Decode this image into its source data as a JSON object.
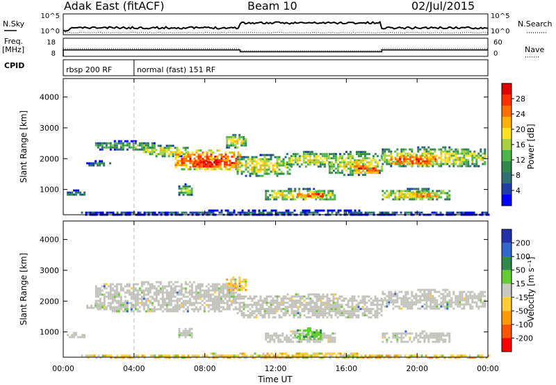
{
  "header": {
    "station": "Adak East (fitACF)",
    "beam": "Beam 10",
    "date": "02/Jul/2015"
  },
  "summary_panel": {
    "left_labels": {
      "nsky": "N.Sky",
      "freq_line1": "Freq.",
      "freq_line2": "[MHz]",
      "cpid": "CPID"
    },
    "right_labels": {
      "nsearch": "N.Search",
      "nave": "Nave"
    },
    "nsky_ticks": [
      "10^5",
      "10^0"
    ],
    "nsearch_ticks": [
      "10^5",
      "10^0"
    ],
    "freq_ticks": [
      "18",
      "8"
    ],
    "nave_ticks": [
      "60",
      "0"
    ],
    "freq_steps": [
      {
        "start_h": 0.0,
        "end_h": 10.0,
        "mhz": 11.5
      },
      {
        "start_h": 10.0,
        "end_h": 18.0,
        "mhz": 10.5
      },
      {
        "start_h": 18.0,
        "end_h": 24.0,
        "mhz": 11.5
      }
    ],
    "cpid_segments": [
      {
        "start_h": 0.0,
        "label": "rbsp 200 RF"
      },
      {
        "start_h": 4.0,
        "label": "normal (fast) 151 RF"
      }
    ]
  },
  "chart_data": [
    {
      "type": "heatmap",
      "name": "Power",
      "ylabel": "Slant Range [km]",
      "xlabel": "",
      "x_range_hours": [
        0,
        24
      ],
      "y_range_km": [
        180,
        4600
      ],
      "y_ticks": [
        "1000",
        "2000",
        "3000",
        "4000"
      ],
      "colorbar_label": "Power [dB]",
      "colorbar_ticks": [
        "4",
        "8",
        "12",
        "16",
        "20",
        "24",
        "28"
      ],
      "colorbar_colors": [
        "#0000ff",
        "#1e3fa6",
        "#2e6f6f",
        "#2f8a4a",
        "#4bb54b",
        "#a8d040",
        "#ffe020",
        "#ffb000",
        "#ff7000",
        "#ff3000",
        "#e00000"
      ],
      "echo_bands": [
        {
          "t0": 0.2,
          "t1": 1.2,
          "r0": 800,
          "r1": 1000,
          "level": 3
        },
        {
          "t0": 1.3,
          "t1": 2.6,
          "r0": 1750,
          "r1": 1950,
          "level": 3
        },
        {
          "t0": 1.8,
          "t1": 5.2,
          "r0": 2300,
          "r1": 2600,
          "level": 4
        },
        {
          "t0": 4.5,
          "t1": 7.0,
          "r0": 2100,
          "r1": 2450,
          "level": 6
        },
        {
          "t0": 6.3,
          "t1": 10.0,
          "r0": 1650,
          "r1": 2300,
          "level": 9
        },
        {
          "t0": 7.3,
          "t1": 9.3,
          "r0": 1700,
          "r1": 2050,
          "level": 10
        },
        {
          "t0": 9.2,
          "t1": 10.3,
          "r0": 2350,
          "r1": 2800,
          "level": 6
        },
        {
          "t0": 9.8,
          "t1": 12.8,
          "r0": 1450,
          "r1": 2150,
          "level": 6
        },
        {
          "t0": 12.6,
          "t1": 15.0,
          "r0": 1750,
          "r1": 2250,
          "level": 6
        },
        {
          "t0": 11.4,
          "t1": 15.4,
          "r0": 650,
          "r1": 1050,
          "level": 6
        },
        {
          "t0": 13.2,
          "t1": 14.8,
          "r0": 750,
          "r1": 950,
          "level": 9
        },
        {
          "t0": 15.0,
          "t1": 18.0,
          "r0": 1500,
          "r1": 2250,
          "level": 6
        },
        {
          "t0": 16.3,
          "t1": 17.8,
          "r0": 1550,
          "r1": 1850,
          "level": 9
        },
        {
          "t0": 18.0,
          "t1": 23.8,
          "r0": 1750,
          "r1": 2400,
          "level": 6
        },
        {
          "t0": 18.5,
          "t1": 21.0,
          "r0": 1800,
          "r1": 2150,
          "level": 9
        },
        {
          "t0": 18.0,
          "t1": 21.8,
          "r0": 650,
          "r1": 1050,
          "level": 6
        },
        {
          "t0": 19.0,
          "t1": 21.2,
          "r0": 750,
          "r1": 950,
          "level": 8
        },
        {
          "t0": 6.5,
          "t1": 7.3,
          "r0": 800,
          "r1": 1200,
          "level": 5
        },
        {
          "t0": 1.0,
          "t1": 24.0,
          "r0": 180,
          "r1": 350,
          "level": 2
        }
      ]
    },
    {
      "type": "heatmap",
      "name": "Velocity",
      "ylabel": "Slant Range [km]",
      "xlabel": "Time UT",
      "x_range_hours": [
        0,
        24
      ],
      "y_range_km": [
        180,
        4600
      ],
      "x_ticks": [
        "00:00",
        "04:00",
        "08:00",
        "12:00",
        "16:00",
        "20:00",
        "00:00"
      ],
      "y_ticks": [
        "1000",
        "2000",
        "3000",
        "4000"
      ],
      "colorbar_label": "Velocity [m s⁻¹]",
      "colorbar_ticks": [
        "200",
        "100",
        "50",
        "15",
        "-15",
        "-50",
        "-100",
        "-200"
      ],
      "colorbar_colors": [
        "#2233aa",
        "#3366cc",
        "#2f8a4a",
        "#66cc33",
        "#c8c8c0",
        "#ffcc33",
        "#ff9900",
        "#ff5500",
        "#ff0000"
      ],
      "ground_scatter_color": "#c4c4bc",
      "echo_bands": [
        {
          "t0": 0.2,
          "t1": 1.2,
          "r0": 800,
          "r1": 1000,
          "kind": "gs"
        },
        {
          "t0": 1.3,
          "t1": 2.6,
          "r0": 1750,
          "r1": 1950,
          "kind": "gs"
        },
        {
          "t0": 1.8,
          "t1": 10.0,
          "r0": 1650,
          "r1": 2650,
          "kind": "gs"
        },
        {
          "t0": 9.2,
          "t1": 10.3,
          "r0": 2350,
          "r1": 2800,
          "kind": "neg"
        },
        {
          "t0": 9.8,
          "t1": 18.0,
          "r0": 1450,
          "r1": 2250,
          "kind": "gs"
        },
        {
          "t0": 11.4,
          "t1": 15.4,
          "r0": 650,
          "r1": 1050,
          "kind": "gs"
        },
        {
          "t0": 13.2,
          "t1": 14.6,
          "r0": 780,
          "r1": 1150,
          "kind": "pos"
        },
        {
          "t0": 18.0,
          "t1": 23.8,
          "r0": 1750,
          "r1": 2400,
          "kind": "gs"
        },
        {
          "t0": 18.0,
          "t1": 21.8,
          "r0": 650,
          "r1": 1050,
          "kind": "gs"
        },
        {
          "t0": 6.5,
          "t1": 7.3,
          "r0": 800,
          "r1": 1200,
          "kind": "gs"
        },
        {
          "t0": 1.0,
          "t1": 24.0,
          "r0": 180,
          "r1": 330,
          "kind": "neg"
        }
      ]
    }
  ]
}
